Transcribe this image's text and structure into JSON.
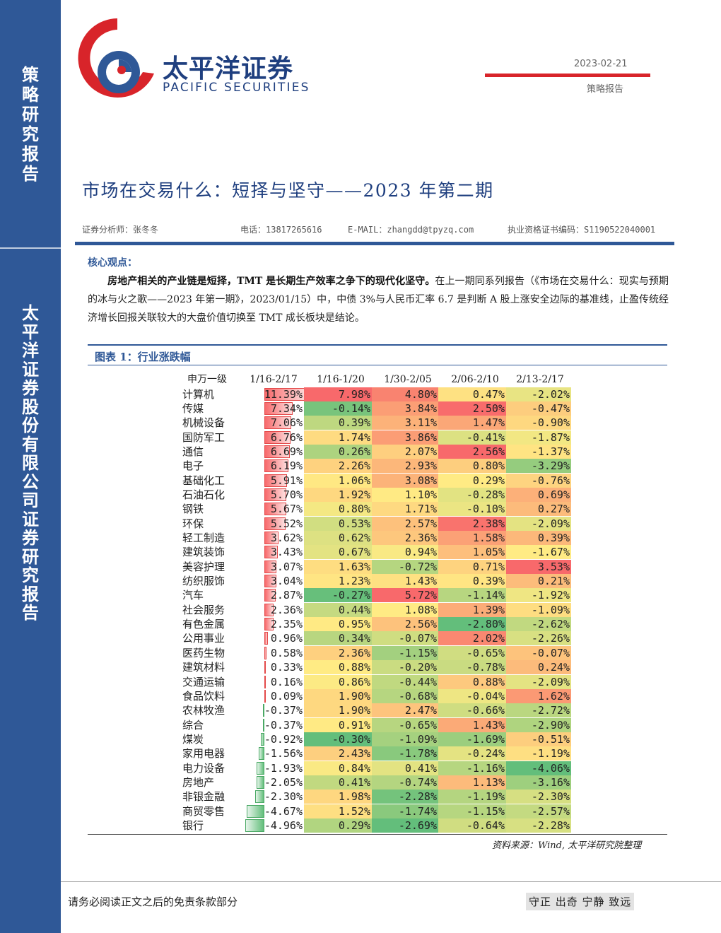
{
  "sidebar": {
    "top_chars": [
      "策",
      "略",
      "研",
      "究",
      "报",
      "告"
    ],
    "bottom_chars": [
      "太",
      "平",
      "洋",
      "证",
      "券",
      "股",
      "份",
      "有",
      "限",
      "公",
      "司",
      "证",
      "券",
      "研",
      "究",
      "报",
      "告"
    ]
  },
  "header": {
    "brand_cn": "太平洋证券",
    "brand_en": "PACIFIC SECURITIES",
    "date": "2023-02-21",
    "report_type": "策略报告"
  },
  "title": "市场在交易什么：短择与坚守——2023 年第二期",
  "meta": {
    "analyst": "证券分析师：张冬冬",
    "phone": "电话：13817265616",
    "email": "E-MAIL：zhangdd@tpyzq.com",
    "cert": "执业资格证书编码：S1190522040001"
  },
  "core": {
    "label": "核心观点：",
    "bold": "房地产相关的产业链是短择，TMT 是长期生产效率之争下的现代化坚守。",
    "body": "在上一期同系列报告（《市场在交易什么：现实与预期的冰与火之歌——2023 年第一期》，2023/01/15）中，中债 3%与人民币汇率 6.7 是判断 A 股上涨安全边际的基准线，止盈传统经济增长回报关联较大的大盘价值切换至 TMT 成长板块是结论。"
  },
  "figure": {
    "title": "图表 1：行业涨跌幅",
    "source": "资料来源：Wind, 太平洋研究院整理"
  },
  "chart_data": {
    "type": "table",
    "columns": [
      "申万一级",
      "1/16-2/17",
      "1/16-1/20",
      "1/30-2/05",
      "2/06-2/10",
      "2/13-2/17"
    ],
    "rows": [
      {
        "name": "计算机",
        "v": [
          "11.39%",
          "7.98%",
          "4.80%",
          "0.47%",
          "-2.02%"
        ]
      },
      {
        "name": "传媒",
        "v": [
          "7.34%",
          "-0.14%",
          "3.84%",
          "2.50%",
          "-0.47%"
        ]
      },
      {
        "name": "机械设备",
        "v": [
          "7.06%",
          "0.39%",
          "3.11%",
          "1.47%",
          "-0.90%"
        ]
      },
      {
        "name": "国防军工",
        "v": [
          "6.76%",
          "1.74%",
          "3.86%",
          "-0.41%",
          "-1.87%"
        ]
      },
      {
        "name": "通信",
        "v": [
          "6.69%",
          "0.26%",
          "2.07%",
          "2.56%",
          "-1.37%"
        ]
      },
      {
        "name": "电子",
        "v": [
          "6.19%",
          "2.26%",
          "2.93%",
          "0.80%",
          "-3.29%"
        ]
      },
      {
        "name": "基础化工",
        "v": [
          "5.91%",
          "1.06%",
          "3.08%",
          "0.29%",
          "-0.76%"
        ]
      },
      {
        "name": "石油石化",
        "v": [
          "5.70%",
          "1.92%",
          "1.10%",
          "-0.28%",
          "0.69%"
        ]
      },
      {
        "name": "钢铁",
        "v": [
          "5.67%",
          "0.80%",
          "1.71%",
          "-0.10%",
          "0.27%"
        ]
      },
      {
        "name": "环保",
        "v": [
          "5.52%",
          "0.53%",
          "2.57%",
          "2.38%",
          "-2.09%"
        ]
      },
      {
        "name": "轻工制造",
        "v": [
          "3.62%",
          "0.62%",
          "2.36%",
          "1.58%",
          "0.39%"
        ]
      },
      {
        "name": "建筑装饰",
        "v": [
          "3.43%",
          "0.67%",
          "0.94%",
          "1.05%",
          "-1.67%"
        ]
      },
      {
        "name": "美容护理",
        "v": [
          "3.07%",
          "1.63%",
          "-0.72%",
          "0.71%",
          "3.53%"
        ]
      },
      {
        "name": "纺织服饰",
        "v": [
          "3.04%",
          "1.23%",
          "1.43%",
          "0.39%",
          "0.21%"
        ]
      },
      {
        "name": "汽车",
        "v": [
          "2.87%",
          "-0.27%",
          "5.72%",
          "-1.14%",
          "-1.92%"
        ]
      },
      {
        "name": "社会服务",
        "v": [
          "2.36%",
          "0.44%",
          "1.08%",
          "1.39%",
          "-1.09%"
        ]
      },
      {
        "name": "有色金属",
        "v": [
          "2.35%",
          "0.95%",
          "2.56%",
          "-2.80%",
          "-2.62%"
        ]
      },
      {
        "name": "公用事业",
        "v": [
          "0.96%",
          "0.34%",
          "-0.07%",
          "2.02%",
          "-2.26%"
        ]
      },
      {
        "name": "医药生物",
        "v": [
          "0.58%",
          "2.36%",
          "-1.15%",
          "-0.65%",
          "-0.07%"
        ]
      },
      {
        "name": "建筑材料",
        "v": [
          "0.33%",
          "0.88%",
          "-0.20%",
          "-0.78%",
          "0.24%"
        ]
      },
      {
        "name": "交通运输",
        "v": [
          "0.16%",
          "0.86%",
          "-0.44%",
          "0.88%",
          "-2.09%"
        ]
      },
      {
        "name": "食品饮料",
        "v": [
          "0.09%",
          "1.90%",
          "-0.68%",
          "-0.04%",
          "1.62%"
        ]
      },
      {
        "name": "农林牧渔",
        "v": [
          "-0.37%",
          "1.90%",
          "2.47%",
          "-0.66%",
          "-2.72%"
        ]
      },
      {
        "name": "综合",
        "v": [
          "-0.37%",
          "0.91%",
          "-0.65%",
          "1.43%",
          "-2.90%"
        ]
      },
      {
        "name": "煤炭",
        "v": [
          "-0.92%",
          "-0.30%",
          "-1.09%",
          "-1.69%",
          "-0.51%"
        ]
      },
      {
        "name": "家用电器",
        "v": [
          "-1.56%",
          "2.43%",
          "-1.78%",
          "-0.24%",
          "-1.19%"
        ]
      },
      {
        "name": "电力设备",
        "v": [
          "-1.93%",
          "0.84%",
          "0.41%",
          "-1.16%",
          "-4.06%"
        ]
      },
      {
        "name": "房地产",
        "v": [
          "-2.05%",
          "0.41%",
          "-0.74%",
          "1.13%",
          "-3.16%"
        ]
      },
      {
        "name": "非银金融",
        "v": [
          "-2.30%",
          "1.98%",
          "-2.28%",
          "-1.19%",
          "-2.30%"
        ]
      },
      {
        "name": "商贸零售",
        "v": [
          "-4.67%",
          "1.52%",
          "-1.74%",
          "-1.15%",
          "-2.57%"
        ]
      },
      {
        "name": "银行",
        "v": [
          "-4.96%",
          "0.29%",
          "-2.69%",
          "-0.64%",
          "-2.28%"
        ]
      }
    ]
  },
  "footer": {
    "disclaimer": "请务必阅读正文之后的免责条款部分",
    "motto": "守正 出奇 宁静 致远"
  },
  "colors": {
    "brand_blue": "#2f5897",
    "brand_red": "#d8242a",
    "heat_low": "#63be7b",
    "heat_mid": "#ffeb84",
    "heat_high": "#f8696b"
  }
}
